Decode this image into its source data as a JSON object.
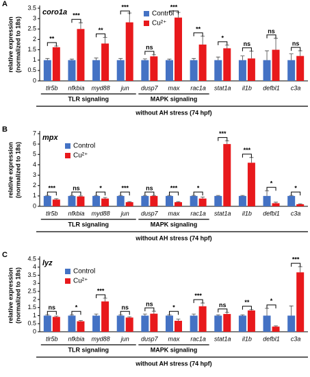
{
  "chart_data": [
    {
      "type": "bar",
      "panel": "A",
      "title": "coro1a",
      "y_label": [
        "relative expression",
        "(normalized to 18s)"
      ],
      "categories": [
        "tlr5b",
        "nfkbia",
        "myd88",
        "jun",
        "dusp7",
        "max",
        "rac1a",
        "stat1a",
        "il1b",
        "defbl1",
        "c3a"
      ],
      "series": [
        {
          "name": "Control",
          "color": "#4472c4",
          "values": [
            1,
            1,
            1,
            1,
            1,
            1,
            1,
            1,
            1,
            1,
            1
          ],
          "errors": [
            0.08,
            0.05,
            0.1,
            0.08,
            0.06,
            0.05,
            0.08,
            0.15,
            0.2,
            0.45,
            0.3
          ]
        },
        {
          "name": "Cu²⁺",
          "color": "#e8191c",
          "values": [
            1.62,
            2.5,
            1.8,
            2.82,
            1.18,
            3.05,
            1.75,
            1.57,
            1.08,
            1.5,
            1.2
          ],
          "errors": [
            0.06,
            0.3,
            0.3,
            0.45,
            0.08,
            0.25,
            0.4,
            0.15,
            0.35,
            0.55,
            0.25
          ]
        }
      ],
      "annotations": [
        "**",
        "***",
        "**",
        "***",
        "ns",
        "***",
        "**",
        "*",
        "ns",
        "ns",
        "ns"
      ],
      "ylim": [
        0,
        3.5
      ],
      "yticks": [
        0,
        0.5,
        1,
        1.5,
        2,
        2.5,
        3,
        3.5
      ],
      "groups": [
        {
          "label": "TLR signaling",
          "first": "tlr5b",
          "last": "jun"
        },
        {
          "label": "MAPK signaling",
          "first": "dusp7",
          "last": "rac1a"
        }
      ],
      "footer": "without AH stress (74 hpf)",
      "legend": "top-center"
    },
    {
      "type": "bar",
      "panel": "B",
      "title": "mpx",
      "y_label": [
        "relative expression",
        "(normalized to 18s)"
      ],
      "categories": [
        "tlr5b",
        "nfkbia",
        "myd88",
        "jun",
        "dusp7",
        "max",
        "rac1a",
        "stat1a",
        "il1b",
        "defbl1",
        "c3a"
      ],
      "series": [
        {
          "name": "Control",
          "color": "#4472c4",
          "values": [
            1,
            1,
            1,
            1,
            1,
            1,
            1,
            1,
            1,
            1,
            1
          ],
          "errors": [
            0.05,
            0.05,
            0.05,
            0.05,
            0.05,
            0.05,
            0.05,
            0.05,
            0.05,
            0.5,
            0.05
          ]
        },
        {
          "name": "Cu²⁺",
          "color": "#e8191c",
          "values": [
            0.65,
            0.95,
            0.75,
            0.4,
            1.0,
            0.4,
            0.75,
            6.0,
            4.2,
            0.3,
            0.2
          ],
          "errors": [
            0.08,
            0.05,
            0.1,
            0.05,
            0.05,
            0.05,
            0.15,
            0.3,
            0.5,
            0.1,
            0.05
          ]
        }
      ],
      "annotations": [
        "***",
        "ns",
        "*",
        "***",
        "ns",
        "***",
        "*",
        "***",
        "***",
        "*",
        "*"
      ],
      "ylim": [
        0,
        7
      ],
      "yticks": [
        0,
        1,
        2,
        3,
        4,
        5,
        6,
        7
      ],
      "groups": [
        {
          "label": "TLR signaling",
          "first": "tlr5b",
          "last": "jun"
        },
        {
          "label": "MAPK signaling",
          "first": "dusp7",
          "last": "rac1a"
        }
      ],
      "footer": "without AH stress (74 hpf)",
      "legend": "top-left"
    },
    {
      "type": "bar",
      "panel": "C",
      "title": "lyz",
      "y_label": [
        "relative expression",
        "(normalized to 18s)"
      ],
      "categories": [
        "tlr5b",
        "nfkbia",
        "myd88",
        "jun",
        "dusp7",
        "max",
        "rac1a",
        "stat1a",
        "il1b",
        "defbl1",
        "c3a"
      ],
      "series": [
        {
          "name": "Control",
          "color": "#4472c4",
          "values": [
            1,
            1,
            1,
            1,
            1,
            1,
            1,
            1,
            1,
            1,
            1
          ],
          "errors": [
            0.05,
            0.05,
            0.1,
            0.05,
            0.1,
            0.05,
            0.1,
            0.05,
            0.05,
            0.45,
            0.6
          ]
        },
        {
          "name": "Cu²⁺",
          "color": "#e8191c",
          "values": [
            0.92,
            0.65,
            1.88,
            0.88,
            1.12,
            0.68,
            1.58,
            1.1,
            1.32,
            0.32,
            3.68
          ],
          "errors": [
            0.05,
            0.05,
            0.2,
            0.05,
            0.15,
            0.1,
            0.2,
            0.1,
            0.05,
            0.05,
            0.35
          ]
        }
      ],
      "annotations": [
        "ns",
        "*",
        "***",
        "ns",
        "ns",
        "*",
        "***",
        "ns",
        "**",
        "*",
        "***"
      ],
      "ylim": [
        0,
        4.5
      ],
      "yticks": [
        0,
        0.5,
        1,
        1.5,
        2,
        2.5,
        3,
        3.5,
        4,
        4.5
      ],
      "groups": [
        {
          "label": "TLR signaling",
          "first": "tlr5b",
          "last": "jun"
        },
        {
          "label": "MAPK signaling",
          "first": "dusp7",
          "last": "rac1a"
        }
      ],
      "footer": "without AH stress (74 hpf)",
      "legend": "top-left"
    }
  ]
}
